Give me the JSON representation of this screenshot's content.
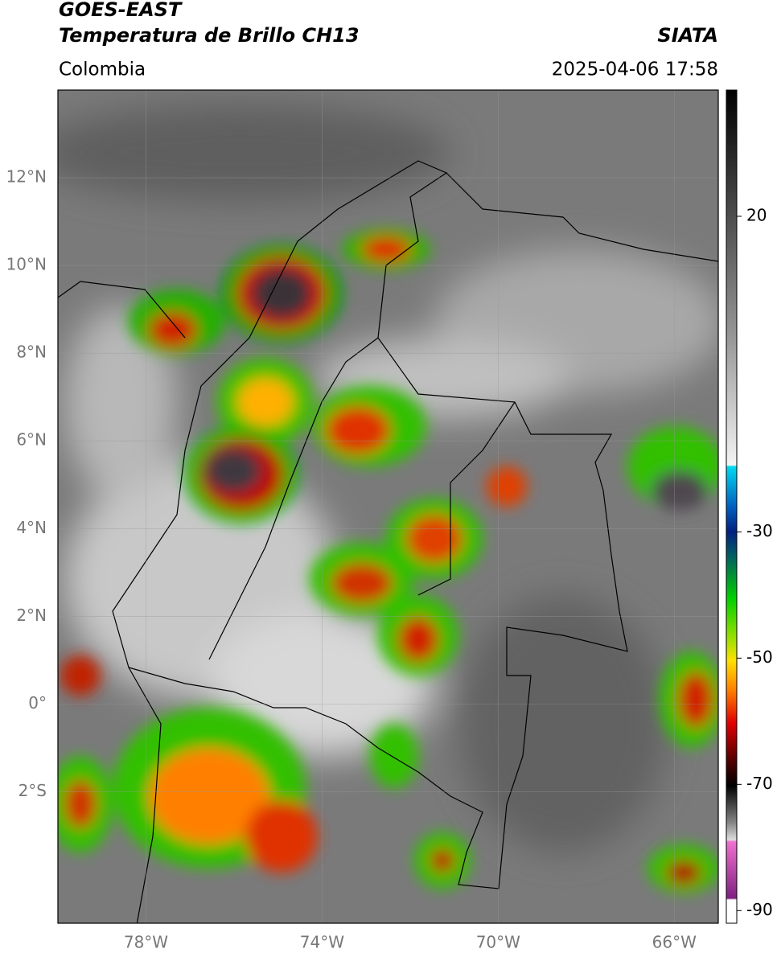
{
  "header": {
    "title": "GOES-EAST",
    "subtitle": "Temperatura de Brillo CH13",
    "source": "SIATA",
    "region": "Colombia",
    "datetime": "2025-04-06 17:58"
  },
  "map": {
    "xlim": [
      -80,
      -65
    ],
    "ylim": [
      -5,
      14
    ],
    "xticks": [
      {
        "value": -78,
        "label": "78°W"
      },
      {
        "value": -74,
        "label": "74°W"
      },
      {
        "value": -70,
        "label": "70°W"
      },
      {
        "value": -66,
        "label": "66°W"
      }
    ],
    "yticks": [
      {
        "value": 12,
        "label": "12°N"
      },
      {
        "value": 10,
        "label": "10°N"
      },
      {
        "value": 8,
        "label": "8°N"
      },
      {
        "value": 6,
        "label": "6°N"
      },
      {
        "value": 4,
        "label": "4°N"
      },
      {
        "value": 2,
        "label": "2°N"
      },
      {
        "value": 0,
        "label": "0°"
      },
      {
        "value": -2,
        "label": "2°S"
      }
    ],
    "grid": true
  },
  "colorbar": {
    "lim": [
      40,
      -92
    ],
    "ticks": [
      20,
      -30,
      -50,
      -70,
      -90
    ]
  }
}
